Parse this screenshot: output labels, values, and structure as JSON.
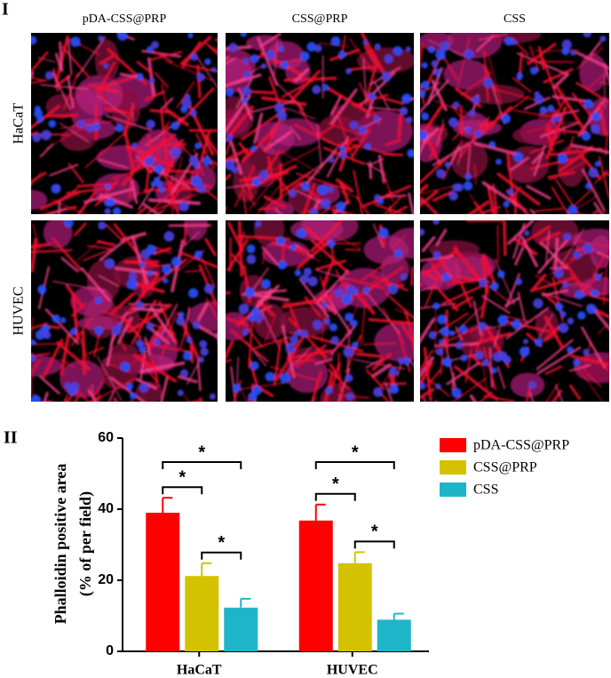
{
  "panel_I": {
    "label": "I",
    "columns": [
      "pDA-CSS@PRP",
      "CSS@PRP",
      "CSS"
    ],
    "rows": [
      "HaCaT",
      "HUVEC"
    ]
  },
  "panel_II": {
    "label": "II"
  },
  "chart_data": {
    "type": "bar",
    "ylabel": [
      "Phalloidin positive area",
      "(% of per field)"
    ],
    "categories": [
      "HaCaT",
      "HUVEC"
    ],
    "series": [
      {
        "name": "pDA-CSS@PRP",
        "color": "#ff0000",
        "values": [
          39,
          36.8
        ],
        "errors": [
          4.2,
          4.5
        ]
      },
      {
        "name": "CSS@PRP",
        "color": "#d4c200",
        "values": [
          21.2,
          24.8
        ],
        "errors": [
          3.6,
          3.1
        ]
      },
      {
        "name": "CSS",
        "color": "#1fb5c9",
        "values": [
          12.3,
          8.9
        ],
        "errors": [
          2.5,
          1.7
        ]
      }
    ],
    "ylim": [
      0,
      60
    ],
    "yticks": [
      0,
      20,
      40,
      60
    ],
    "legend": "upper right",
    "significance": [
      {
        "label": "*",
        "group": 0,
        "between": [
          0,
          2
        ]
      },
      {
        "label": "*",
        "group": 0,
        "between": [
          0,
          1
        ]
      },
      {
        "label": "*",
        "group": 0,
        "between": [
          1,
          2
        ]
      },
      {
        "label": "*",
        "group": 1,
        "between": [
          0,
          2
        ]
      },
      {
        "label": "*",
        "group": 1,
        "between": [
          0,
          1
        ]
      },
      {
        "label": "*",
        "group": 1,
        "between": [
          1,
          2
        ]
      }
    ]
  }
}
